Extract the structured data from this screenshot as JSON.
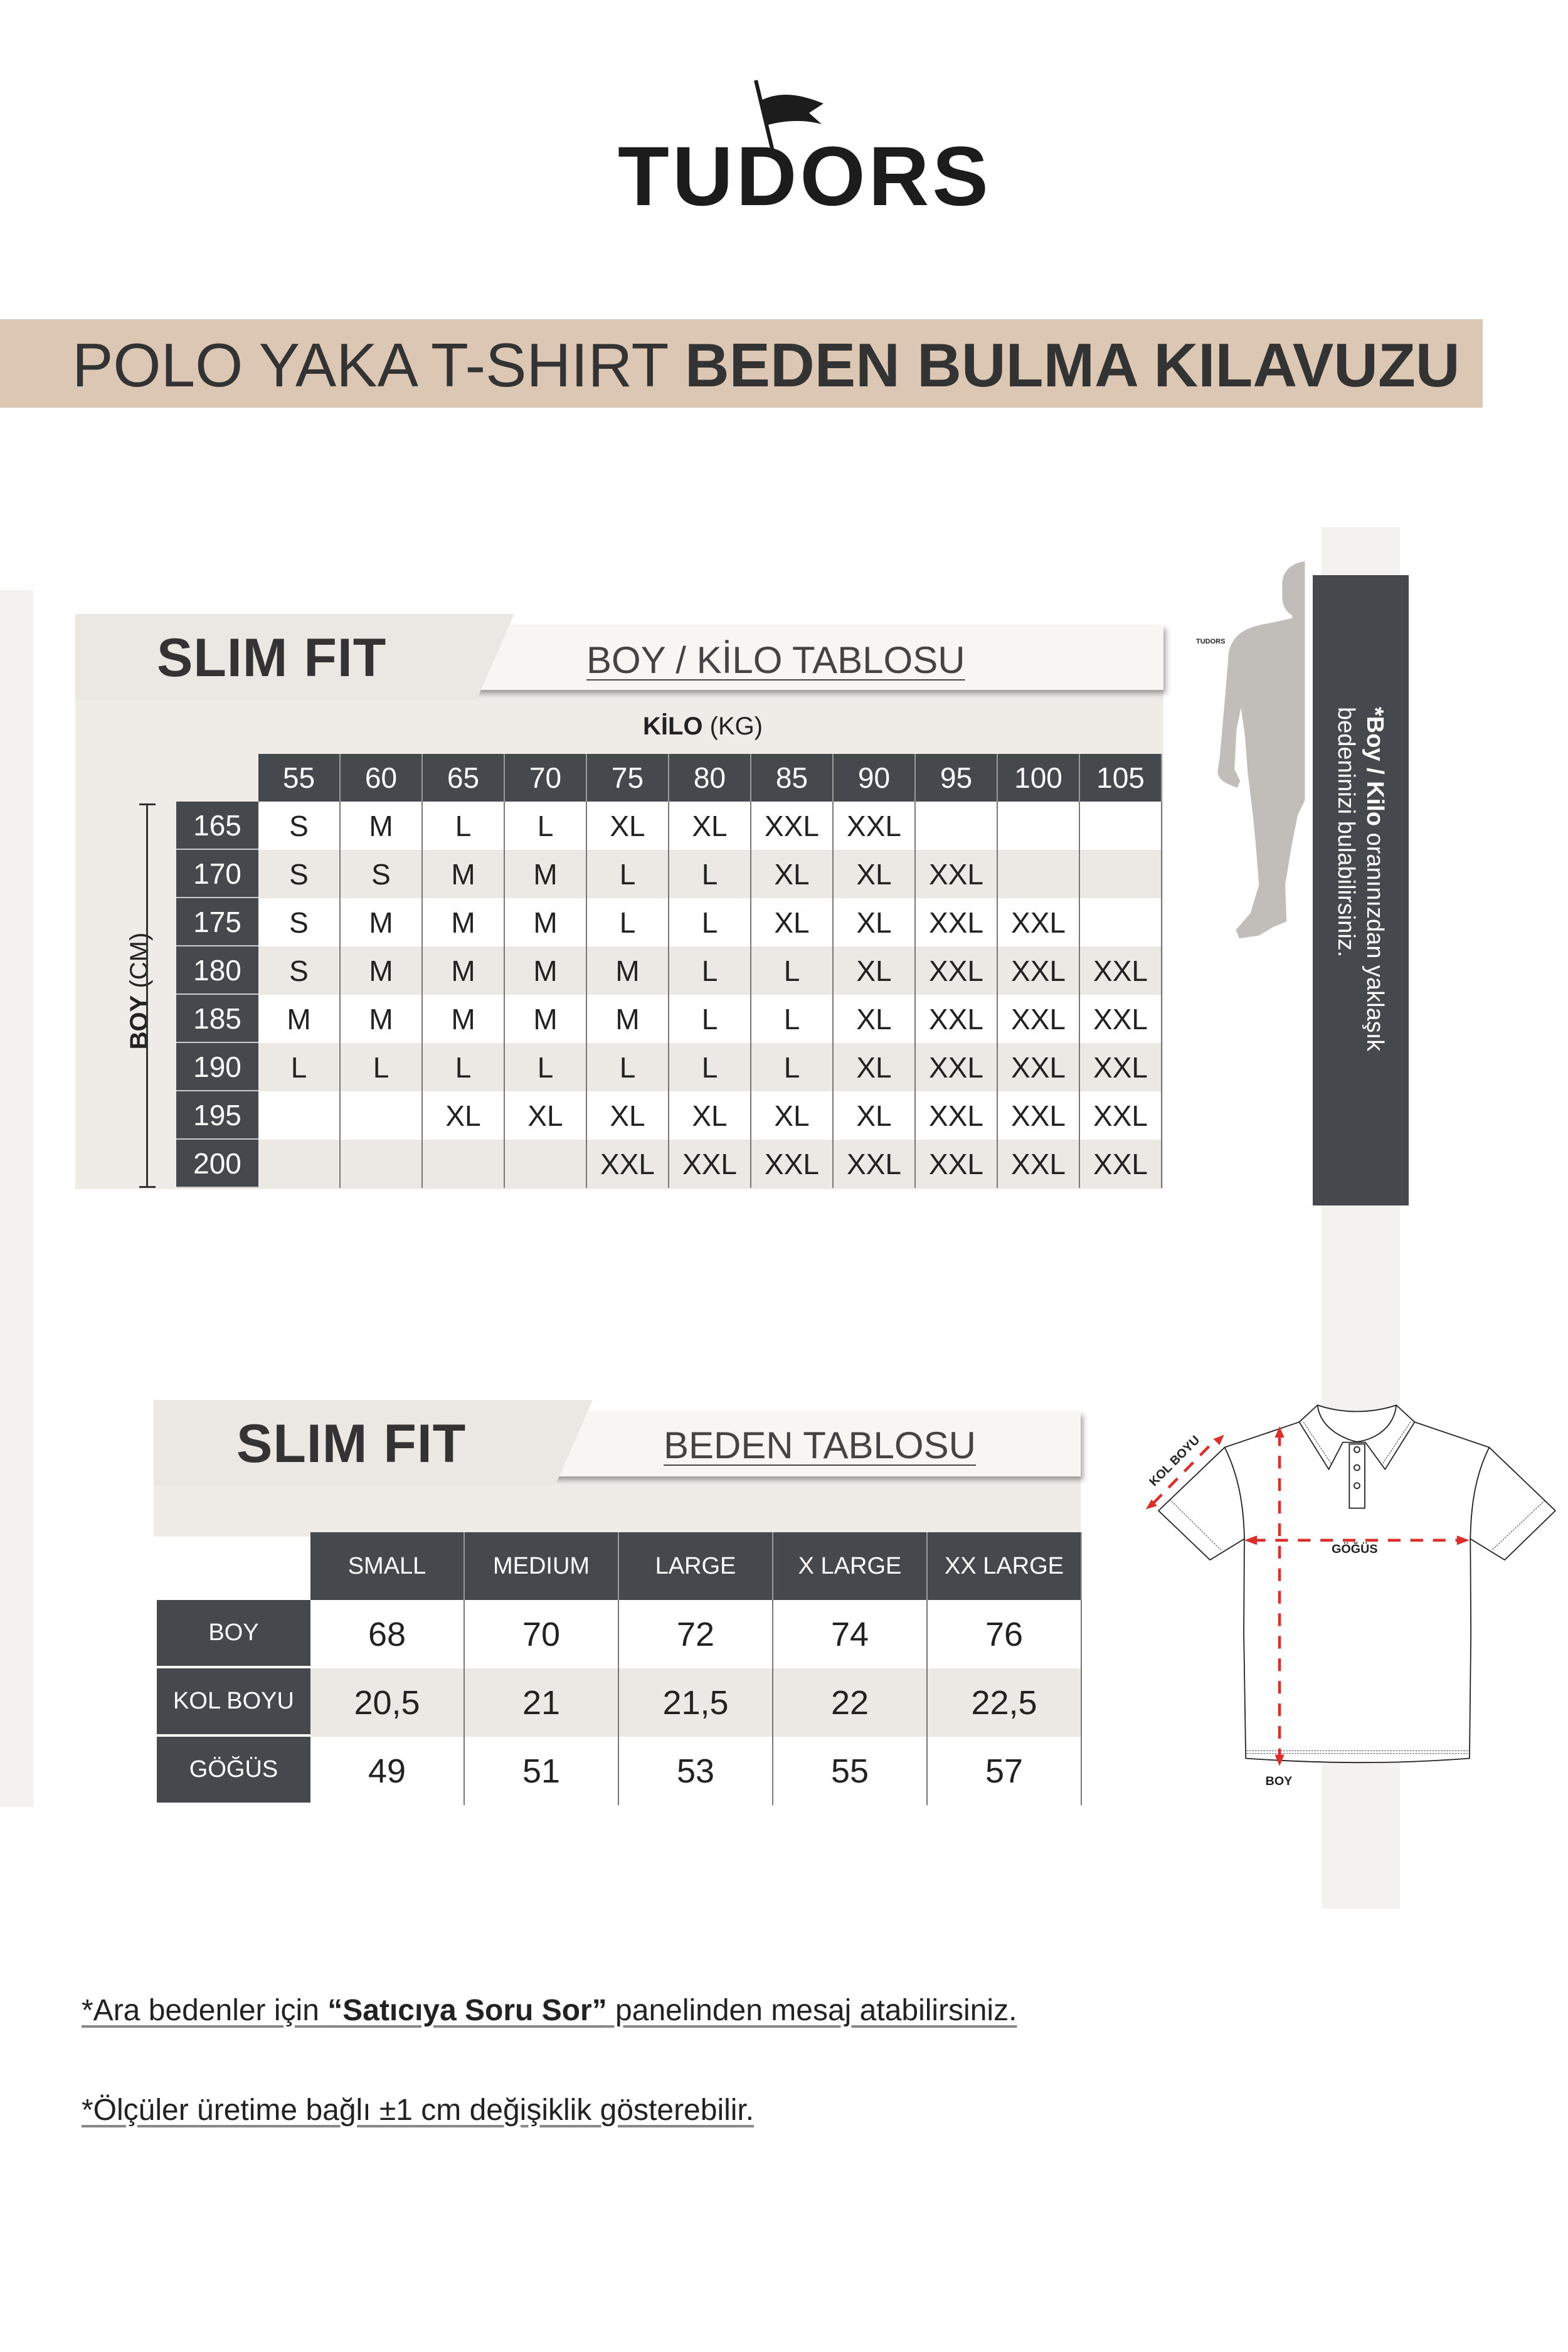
{
  "brand": {
    "logo": "TUDORS",
    "small_logo": "TUDORS"
  },
  "banner": {
    "light": "POLO YAKA T-SHIRT",
    "bold": "BEDEN BULMA KILAVUZU",
    "color": "#dcc7b4"
  },
  "colors": {
    "dark": "#45484d",
    "row_alt": "#ece8e3",
    "measure_arrow": "#d9302c"
  },
  "boy_kilo": {
    "fit": "SLIM FIT",
    "title": "BOY / KİLO TABLOSU",
    "kilo_label_bold": "KİLO",
    "kilo_label_unit": "(KG)",
    "boy_label_bold": "BOY",
    "boy_label_unit": "(CM)",
    "weights": [
      "55",
      "60",
      "65",
      "70",
      "75",
      "80",
      "85",
      "90",
      "95",
      "100",
      "105"
    ],
    "rows": [
      {
        "height": "165",
        "sizes": [
          "S",
          "M",
          "L",
          "L",
          "XL",
          "XL",
          "XXL",
          "XXL",
          "",
          "",
          ""
        ]
      },
      {
        "height": "170",
        "sizes": [
          "S",
          "S",
          "M",
          "M",
          "L",
          "L",
          "XL",
          "XL",
          "XXL",
          "",
          ""
        ]
      },
      {
        "height": "175",
        "sizes": [
          "S",
          "M",
          "M",
          "M",
          "L",
          "L",
          "XL",
          "XL",
          "XXL",
          "XXL",
          ""
        ]
      },
      {
        "height": "180",
        "sizes": [
          "S",
          "M",
          "M",
          "M",
          "M",
          "L",
          "L",
          "XL",
          "XXL",
          "XXL",
          "XXL"
        ]
      },
      {
        "height": "185",
        "sizes": [
          "M",
          "M",
          "M",
          "M",
          "M",
          "L",
          "L",
          "XL",
          "XXL",
          "XXL",
          "XXL"
        ]
      },
      {
        "height": "190",
        "sizes": [
          "L",
          "L",
          "L",
          "L",
          "L",
          "L",
          "L",
          "XL",
          "XXL",
          "XXL",
          "XXL"
        ]
      },
      {
        "height": "195",
        "sizes": [
          "",
          "",
          "XL",
          "XL",
          "XL",
          "XL",
          "XL",
          "XL",
          "XXL",
          "XXL",
          "XXL"
        ]
      },
      {
        "height": "200",
        "sizes": [
          "",
          "",
          "",
          "",
          "XXL",
          "XXL",
          "XXL",
          "XXL",
          "XXL",
          "XXL",
          "XXL"
        ]
      }
    ]
  },
  "side_note": {
    "star": "*",
    "bold1": "Boy",
    "sep": " / ",
    "bold2": "Kilo",
    "line1_rest": " oranınızdan yaklaşık",
    "line2": "bedeninizi bulabilirsiniz."
  },
  "beden": {
    "fit": "SLIM FIT",
    "title": "BEDEN TABLOSU",
    "sizes": [
      "SMALL",
      "MEDIUM",
      "LARGE",
      "X LARGE",
      "XX LARGE"
    ],
    "rows": [
      {
        "label": "BOY",
        "values": [
          "68",
          "70",
          "72",
          "74",
          "76"
        ]
      },
      {
        "label": "KOL BOYU",
        "values": [
          "20,5",
          "21",
          "21,5",
          "22",
          "22,5"
        ]
      },
      {
        "label": "GÖĞÜS",
        "values": [
          "49",
          "51",
          "53",
          "55",
          "57"
        ]
      }
    ]
  },
  "diagram": {
    "kol_boyu": "KOL BOYU",
    "gogus": "GÖĞÜS",
    "boy": "BOY"
  },
  "notes": {
    "note1_pre": "*Ara bedenler için ",
    "note1_bold": "“Satıcıya Soru Sor”",
    "note1_post": " panelinden mesaj atabilirsiniz.",
    "note2": "*Ölçüler üretime bağlı ±1 cm değişiklik gösterebilir."
  }
}
